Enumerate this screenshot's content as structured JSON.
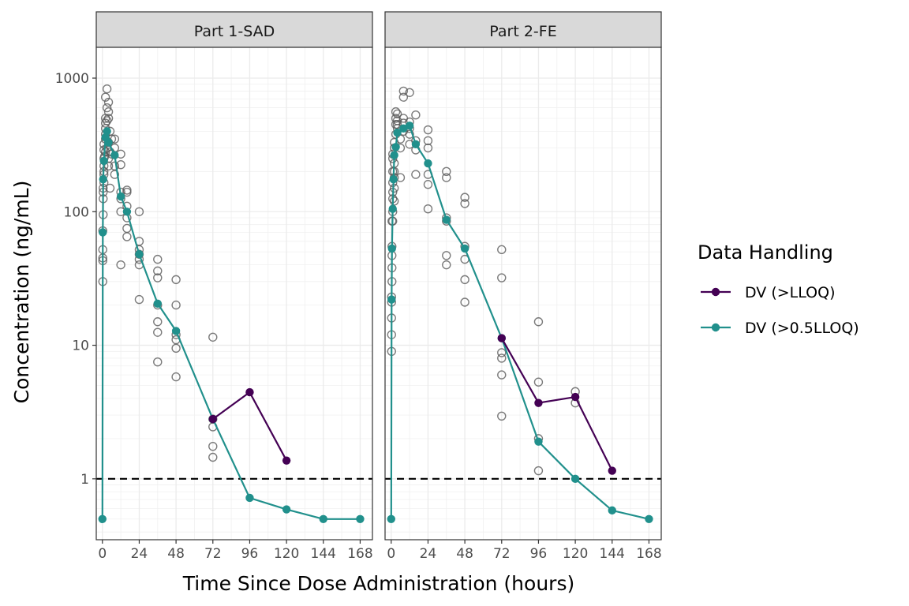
{
  "chart_data": {
    "type": "line",
    "facets": [
      "Part 1-SAD",
      "Part 2-FE"
    ],
    "xlabel": "Time Since Dose Administration (hours)",
    "ylabel": "Concentration (ng/mL)",
    "x_ticks": [
      0,
      24,
      48,
      72,
      96,
      120,
      144,
      168
    ],
    "xlim": [
      -4,
      176
    ],
    "y_scale": "log10",
    "y_ticks": [
      1,
      10,
      100,
      1000
    ],
    "y_tick_labels": [
      "1",
      "10",
      "100",
      "1000"
    ],
    "ylim": [
      0.35,
      1700
    ],
    "reference_line": {
      "y": 1,
      "style": "dashed",
      "color": "#000000"
    },
    "grid": true,
    "legend": {
      "title": "Data Handling",
      "placement": "right",
      "entries": [
        {
          "name": "DV (>LLOQ)",
          "color": "#440154"
        },
        {
          "name": "DV (>0.5LLOQ)",
          "color": "#21908C"
        }
      ]
    },
    "panels": [
      {
        "facet": "Part 1-SAD",
        "series": [
          {
            "name": "DV (>LLOQ)",
            "color": "#440154",
            "points": [
              [
                72,
                2.8
              ],
              [
                96,
                4.45
              ],
              [
                120,
                1.37
              ]
            ]
          },
          {
            "name": "DV (>0.5LLOQ)",
            "color": "#21908C",
            "points": [
              [
                0,
                0.5
              ],
              [
                0.25,
                70
              ],
              [
                0.5,
                175
              ],
              [
                1,
                240
              ],
              [
                2,
                360
              ],
              [
                3,
                400
              ],
              [
                4,
                330
              ],
              [
                8,
                265
              ],
              [
                12,
                130
              ],
              [
                16,
                100
              ],
              [
                24,
                48
              ],
              [
                36,
                20.5
              ],
              [
                48,
                12.8
              ],
              [
                72,
                2.8
              ],
              [
                96,
                0.72
              ],
              [
                120,
                0.59
              ],
              [
                144,
                0.5
              ],
              [
                168,
                0.5
              ]
            ]
          }
        ],
        "observed": [
          [
            0.25,
            30
          ],
          [
            0.25,
            43
          ],
          [
            0.25,
            45
          ],
          [
            0.25,
            52
          ],
          [
            0.25,
            72
          ],
          [
            0.5,
            95
          ],
          [
            0.5,
            125
          ],
          [
            0.5,
            140
          ],
          [
            0.5,
            150
          ],
          [
            1,
            165
          ],
          [
            1,
            190
          ],
          [
            1,
            200
          ],
          [
            1,
            220
          ],
          [
            1,
            250
          ],
          [
            1,
            290
          ],
          [
            1,
            320
          ],
          [
            1.5,
            260
          ],
          [
            2,
            280
          ],
          [
            2,
            350
          ],
          [
            2,
            380
          ],
          [
            2,
            420
          ],
          [
            2,
            460
          ],
          [
            2,
            500
          ],
          [
            2,
            720
          ],
          [
            3,
            300
          ],
          [
            3,
            480
          ],
          [
            3,
            600
          ],
          [
            3,
            830
          ],
          [
            4,
            220
          ],
          [
            4,
            250
          ],
          [
            4,
            330
          ],
          [
            4,
            500
          ],
          [
            4,
            560
          ],
          [
            4,
            660
          ],
          [
            5,
            150
          ],
          [
            5,
            280
          ],
          [
            5,
            400
          ],
          [
            6,
            270
          ],
          [
            6,
            350
          ],
          [
            8,
            190
          ],
          [
            8,
            220
          ],
          [
            8,
            300
          ],
          [
            8,
            350
          ],
          [
            12,
            40
          ],
          [
            12,
            100
          ],
          [
            12,
            125
          ],
          [
            12,
            140
          ],
          [
            12,
            225
          ],
          [
            12,
            270
          ],
          [
            16,
            65
          ],
          [
            16,
            75
          ],
          [
            16,
            90
          ],
          [
            16,
            110
          ],
          [
            16,
            140
          ],
          [
            16,
            145
          ],
          [
            24,
            22
          ],
          [
            24,
            40
          ],
          [
            24,
            44
          ],
          [
            24,
            48
          ],
          [
            24,
            52
          ],
          [
            24,
            60
          ],
          [
            24,
            100
          ],
          [
            36,
            7.5
          ],
          [
            36,
            12.5
          ],
          [
            36,
            15
          ],
          [
            36,
            20
          ],
          [
            36,
            32
          ],
          [
            36,
            36
          ],
          [
            36,
            44
          ],
          [
            48,
            5.8
          ],
          [
            48,
            9.5
          ],
          [
            48,
            11
          ],
          [
            48,
            12
          ],
          [
            48,
            20
          ],
          [
            48,
            31
          ],
          [
            72,
            1.45
          ],
          [
            72,
            1.75
          ],
          [
            72,
            2.45
          ],
          [
            72,
            2.8
          ],
          [
            72,
            11.5
          ]
        ]
      },
      {
        "facet": "Part 2-FE",
        "series": [
          {
            "name": "DV (>LLOQ)",
            "color": "#440154",
            "points": [
              [
                72,
                11.3
              ],
              [
                96,
                3.7
              ],
              [
                120,
                4.1
              ],
              [
                144,
                1.15
              ]
            ]
          },
          {
            "name": "DV (>0.5LLOQ)",
            "color": "#21908C",
            "points": [
              [
                0,
                0.5
              ],
              [
                0.25,
                22
              ],
              [
                0.5,
                53
              ],
              [
                1,
                105
              ],
              [
                1.5,
                175
              ],
              [
                2,
                265
              ],
              [
                3,
                305
              ],
              [
                4,
                390
              ],
              [
                8,
                420
              ],
              [
                12,
                440
              ],
              [
                16,
                320
              ],
              [
                24,
                230
              ],
              [
                36,
                87
              ],
              [
                48,
                53
              ],
              [
                72,
                11.3
              ],
              [
                96,
                1.9
              ],
              [
                120,
                1.0
              ],
              [
                144,
                0.58
              ],
              [
                168,
                0.5
              ]
            ]
          }
        ],
        "observed": [
          [
            0.25,
            9
          ],
          [
            0.25,
            12
          ],
          [
            0.25,
            16
          ],
          [
            0.25,
            21
          ],
          [
            0.25,
            23
          ],
          [
            0.5,
            30
          ],
          [
            0.5,
            38
          ],
          [
            0.5,
            47
          ],
          [
            0.5,
            55
          ],
          [
            0.5,
            85
          ],
          [
            1,
            85
          ],
          [
            1,
            100
          ],
          [
            1,
            125
          ],
          [
            1,
            140
          ],
          [
            1,
            165
          ],
          [
            1,
            200
          ],
          [
            1,
            250
          ],
          [
            1,
            270
          ],
          [
            2,
            120
          ],
          [
            2,
            150
          ],
          [
            2,
            180
          ],
          [
            2,
            200
          ],
          [
            2,
            230
          ],
          [
            2,
            300
          ],
          [
            2,
            330
          ],
          [
            3,
            380
          ],
          [
            3,
            450
          ],
          [
            3,
            500
          ],
          [
            3,
            560
          ],
          [
            4,
            420
          ],
          [
            4,
            450
          ],
          [
            4,
            480
          ],
          [
            4,
            540
          ],
          [
            6,
            180
          ],
          [
            6,
            300
          ],
          [
            6,
            350
          ],
          [
            8,
            400
          ],
          [
            8,
            460
          ],
          [
            8,
            500
          ],
          [
            8,
            720
          ],
          [
            8,
            800
          ],
          [
            12,
            320
          ],
          [
            12,
            380
          ],
          [
            12,
            420
          ],
          [
            12,
            470
          ],
          [
            12,
            780
          ],
          [
            16,
            290
          ],
          [
            16,
            340
          ],
          [
            16,
            530
          ],
          [
            16,
            190
          ],
          [
            24,
            105
          ],
          [
            24,
            160
          ],
          [
            24,
            190
          ],
          [
            24,
            300
          ],
          [
            24,
            340
          ],
          [
            24,
            410
          ],
          [
            36,
            40
          ],
          [
            36,
            47
          ],
          [
            36,
            85
          ],
          [
            36,
            90
          ],
          [
            36,
            180
          ],
          [
            36,
            200
          ],
          [
            48,
            21
          ],
          [
            48,
            31
          ],
          [
            48,
            44
          ],
          [
            48,
            55
          ],
          [
            48,
            115
          ],
          [
            48,
            128
          ],
          [
            72,
            2.95
          ],
          [
            72,
            6
          ],
          [
            72,
            8
          ],
          [
            72,
            8.8
          ],
          [
            72,
            32
          ],
          [
            72,
            52
          ],
          [
            96,
            1.15
          ],
          [
            96,
            2
          ],
          [
            96,
            5.3
          ],
          [
            96,
            15
          ],
          [
            120,
            3.7
          ],
          [
            120,
            4.5
          ]
        ]
      }
    ]
  }
}
